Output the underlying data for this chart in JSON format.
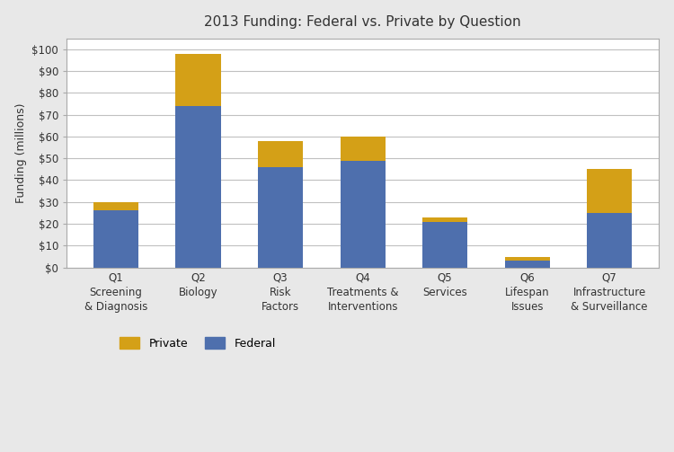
{
  "title": "2013 Funding: Federal vs. Private by Question",
  "ylabel": "Funding (millions)",
  "categories_line1": [
    "Q1",
    "Q2",
    "Q3",
    "Q4",
    "Q5",
    "Q6",
    "Q7"
  ],
  "categories_line2": [
    "Screening",
    "Biology",
    "Risk",
    "Treatments &",
    "Services",
    "Lifespan",
    "Infrastructure"
  ],
  "categories_line3": [
    "& Diagnosis",
    "",
    "Factors",
    "Interventions",
    "",
    "Issues",
    "& Surveillance"
  ],
  "federal": [
    26,
    74,
    46,
    49,
    21,
    3,
    25
  ],
  "private": [
    4,
    24,
    12,
    11,
    2,
    2,
    20
  ],
  "federal_color": "#4E6FAD",
  "private_color": "#D4A017",
  "ylim": [
    0,
    105
  ],
  "yticks": [
    0,
    10,
    20,
    30,
    40,
    50,
    60,
    70,
    80,
    90,
    100
  ],
  "ytick_labels": [
    "$0",
    "$10",
    "$20",
    "$30",
    "$40",
    "$50",
    "$60",
    "$70",
    "$80",
    "$90",
    "$100"
  ],
  "legend_labels": [
    "Private",
    "Federal"
  ],
  "background_color": "#ffffff",
  "fig_background": "#ffffff",
  "outer_background": "#e8e8e8",
  "grid_color": "#c0c0c0",
  "title_fontsize": 11,
  "axis_label_fontsize": 9,
  "tick_fontsize": 8.5,
  "bar_width": 0.55
}
